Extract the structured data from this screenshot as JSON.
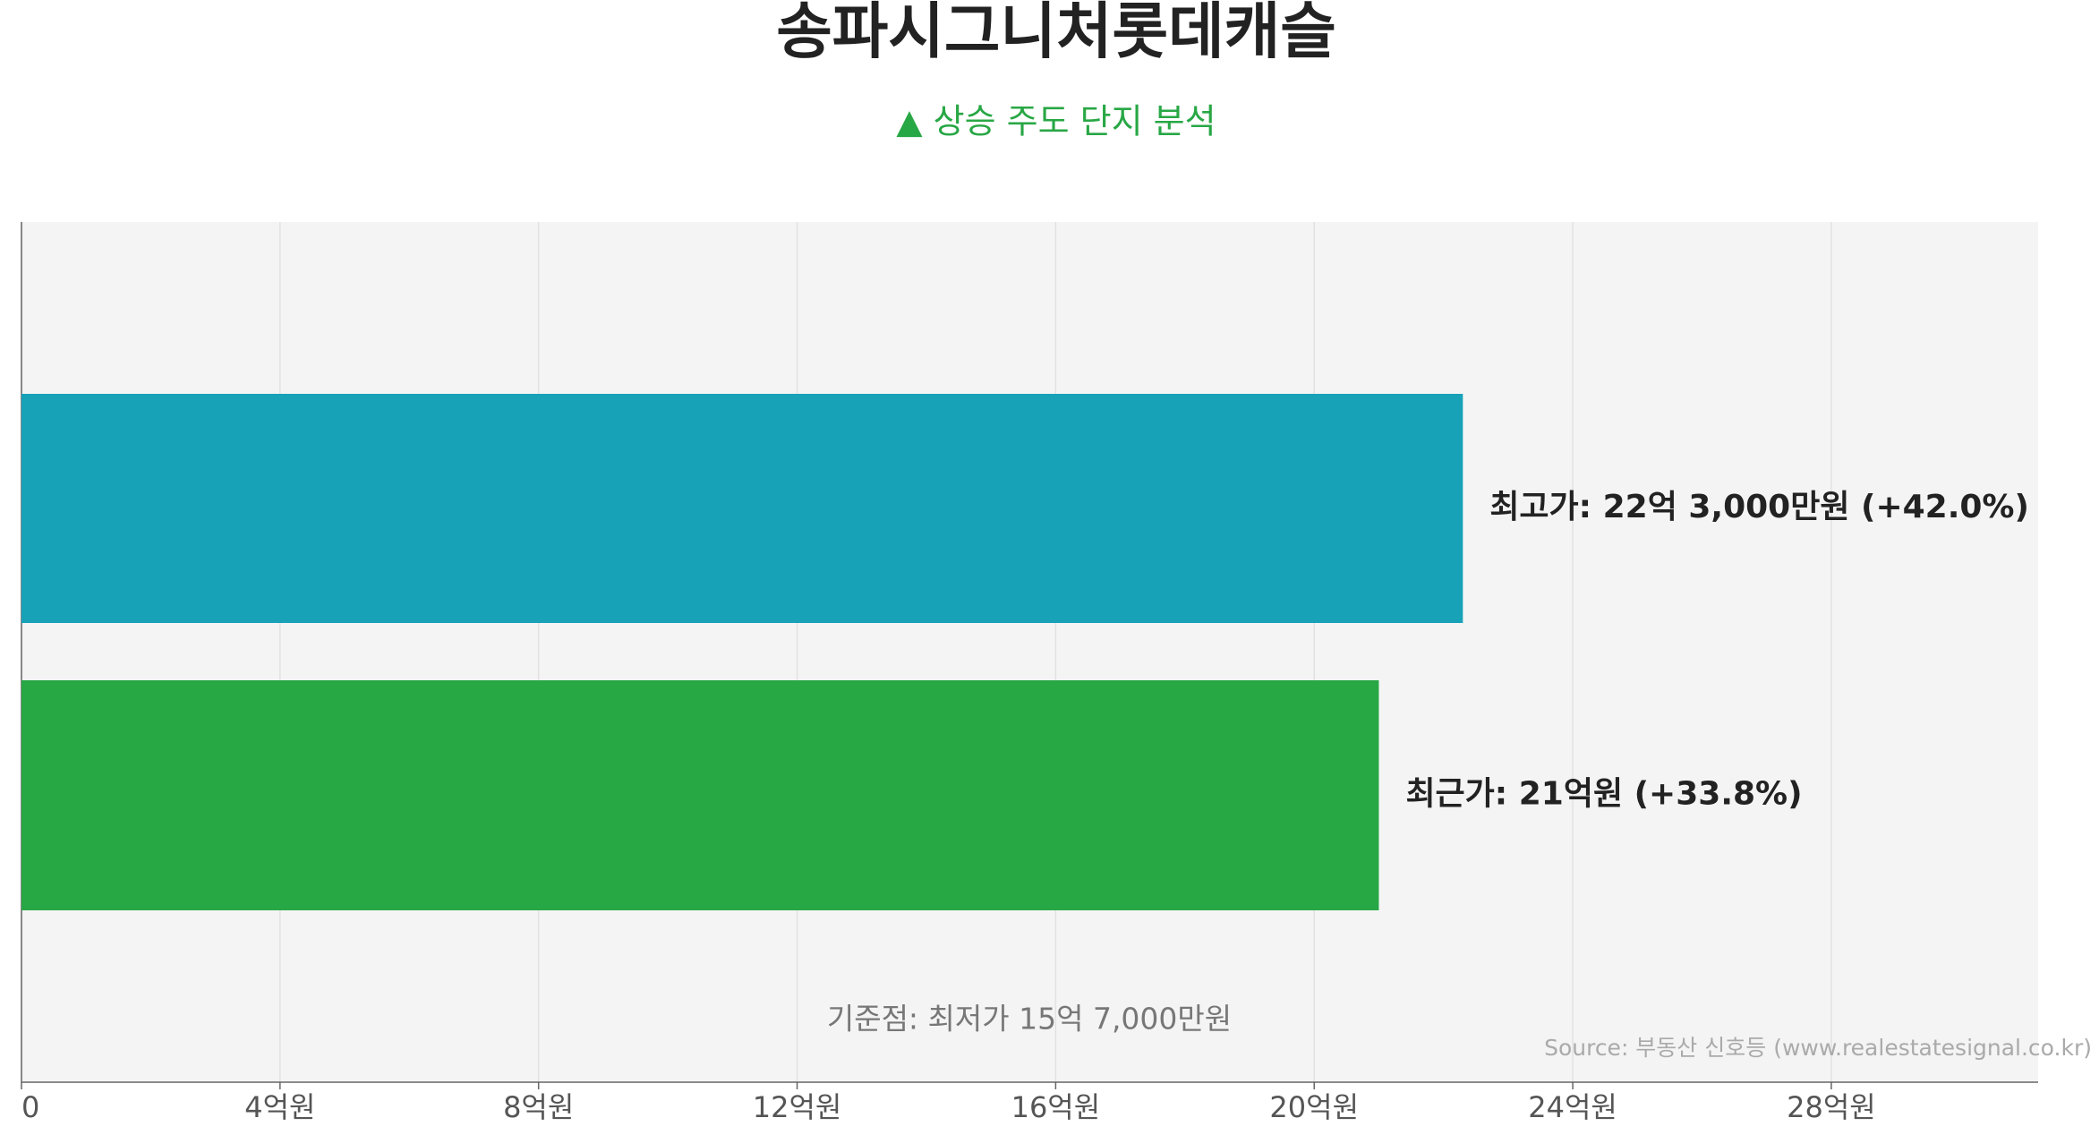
{
  "chart_data": {
    "type": "barh",
    "title": "송파시그니처롯데캐슬",
    "subtitle": "▲ 상승 주도 단지 분석",
    "values": [
      22.3,
      21
    ],
    "value_labels": [
      "최고가: 22억 3,000만원 (+42.0%)",
      "최근가: 21억원 (+33.8%)"
    ],
    "colors": [
      "#17a2b8",
      "#28a745"
    ],
    "xlim": [
      0,
      31.2
    ],
    "xticks": [
      0,
      {
        "value": 4,
        "label": "4억원"
      },
      {
        "value": 8,
        "label": "8억원"
      },
      {
        "value": 12,
        "label": "12억원"
      },
      {
        "value": 16,
        "label": "16억원"
      },
      {
        "value": 20,
        "label": "20억원"
      },
      {
        "value": 24,
        "label": "24억원"
      },
      {
        "value": 28,
        "label": "28억원"
      }
    ],
    "grid": true,
    "annotations": [
      "기준점: 최저가 15억 7,000만원",
      "Source: 부동산 신호등 (www.realestatesignal.co.kr)"
    ]
  }
}
